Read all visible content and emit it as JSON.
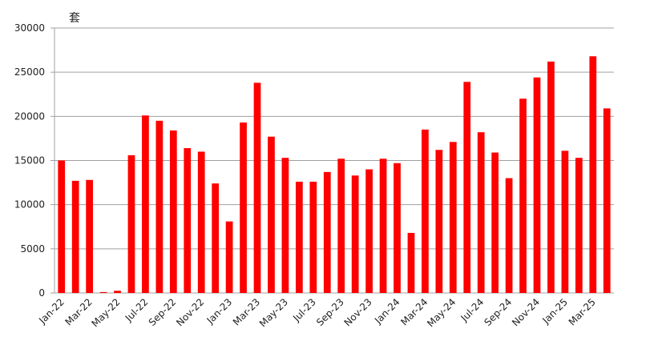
{
  "chart_data": {
    "type": "bar",
    "unit": "套",
    "categories": [
      "Jan-22",
      null,
      "Mar-22",
      null,
      "May-22",
      null,
      "Jul-22",
      null,
      "Sep-22",
      null,
      "Nov-22",
      null,
      "Jan-23",
      null,
      "Mar-23",
      null,
      "May-23",
      null,
      "Jul-23",
      null,
      "Sep-23",
      null,
      "Nov-23",
      null,
      "Jan-24",
      null,
      "Mar-24",
      null,
      "May-24",
      null,
      "Jul-24",
      null,
      "Sep-24",
      null,
      "Nov-24",
      null,
      "Jan-25",
      null,
      "Mar-25",
      null
    ],
    "values": [
      15000,
      12700,
      12800,
      100,
      250,
      15600,
      20100,
      19500,
      18400,
      16400,
      16000,
      12400,
      8100,
      19300,
      23800,
      17700,
      15300,
      12600,
      12600,
      13700,
      15200,
      13300,
      14000,
      15200,
      14700,
      6800,
      18500,
      16200,
      17100,
      23900,
      18200,
      15900,
      13000,
      22000,
      24400,
      26200,
      16100,
      15300,
      26800,
      20900
    ],
    "color": "#ff0000",
    "ylim": [
      0,
      30000
    ],
    "yticks": [
      0,
      5000,
      10000,
      15000,
      20000,
      25000,
      30000
    ],
    "grid": true
  }
}
